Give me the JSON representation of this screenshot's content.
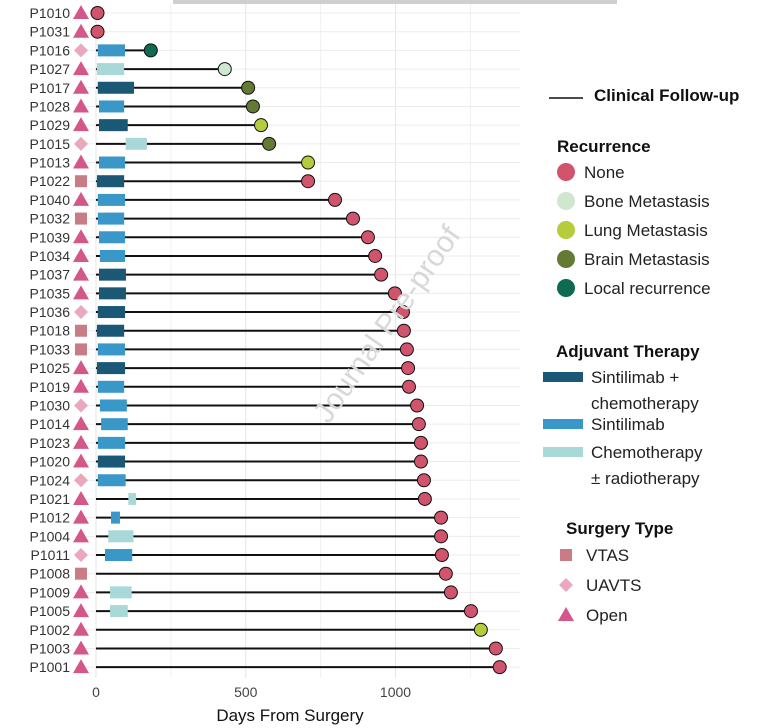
{
  "chart_data": {
    "type": "swimmer",
    "xlabel": "Days From Surgery",
    "ylabel": "",
    "xlim": [
      -60,
      1420
    ],
    "xticks": [
      0,
      500,
      1000
    ],
    "grid": true,
    "legend_position": "right",
    "watermark": "Journal Pre-proof",
    "legends": {
      "followup": {
        "label": "Clinical Follow-up"
      },
      "recurrence": {
        "title": "Recurrence",
        "items": [
          {
            "key": "none",
            "label": "None",
            "color": "#d0546c"
          },
          {
            "key": "bone",
            "label": "Bone Metastasis",
            "color": "#cfe6cf"
          },
          {
            "key": "lung",
            "label": "Lung Metastasis",
            "color": "#b5cc3c"
          },
          {
            "key": "brain",
            "label": "Brain Metastasis",
            "color": "#637a35"
          },
          {
            "key": "local",
            "label": "Local recurrence",
            "color": "#0e6b50"
          }
        ]
      },
      "therapy": {
        "title": "Adjuvant Therapy",
        "items": [
          {
            "key": "combo",
            "label_lines": [
              "Sintilimab +",
              "chemotherapy"
            ],
            "color": "#1b5876"
          },
          {
            "key": "sint",
            "label_lines": [
              "Sintilimab"
            ],
            "color": "#3a98c8"
          },
          {
            "key": "chemo",
            "label_lines": [
              "Chemotherapy",
              "± radiotherapy"
            ],
            "color": "#a9d8d8"
          }
        ]
      },
      "surgery": {
        "title": "Surgery Type",
        "items": [
          {
            "key": "VTAS",
            "label": "VTAS",
            "color": "#c97b86",
            "shape": "square"
          },
          {
            "key": "UAVTS",
            "label": "UAVTS",
            "color": "#eaa8bc",
            "shape": "diamond"
          },
          {
            "key": "Open",
            "label": "Open",
            "color": "#d4578a",
            "shape": "triangle"
          }
        ]
      }
    },
    "patients": [
      {
        "id": "P1010",
        "surgery": "Open",
        "followup": 5,
        "recurrence": "none",
        "therapy": null
      },
      {
        "id": "P1031",
        "surgery": "Open",
        "followup": 5,
        "recurrence": "none",
        "therapy": null
      },
      {
        "id": "P1016",
        "surgery": "UAVTS",
        "followup": 183,
        "recurrence": "local",
        "therapy": {
          "type": "sint",
          "start": 6,
          "end": 97
        }
      },
      {
        "id": "P1027",
        "surgery": "Open",
        "followup": 430,
        "recurrence": "bone",
        "therapy": {
          "type": "chemo",
          "start": 3,
          "end": 94
        }
      },
      {
        "id": "P1017",
        "surgery": "Open",
        "followup": 508,
        "recurrence": "brain",
        "therapy": {
          "type": "combo",
          "start": 6,
          "end": 127
        }
      },
      {
        "id": "P1028",
        "surgery": "Open",
        "followup": 524,
        "recurrence": "brain",
        "therapy": {
          "type": "sint",
          "start": 10,
          "end": 94
        }
      },
      {
        "id": "P1029",
        "surgery": "Open",
        "followup": 551,
        "recurrence": "lung",
        "therapy": {
          "type": "combo",
          "start": 10,
          "end": 106
        }
      },
      {
        "id": "P1015",
        "surgery": "UAVTS",
        "followup": 578,
        "recurrence": "brain",
        "therapy": {
          "type": "chemo",
          "start": 99,
          "end": 170
        }
      },
      {
        "id": "P1013",
        "surgery": "Open",
        "followup": 708,
        "recurrence": "lung",
        "therapy": {
          "type": "sint",
          "start": 10,
          "end": 97
        }
      },
      {
        "id": "P1022",
        "surgery": "VTAS",
        "followup": 708,
        "recurrence": "none",
        "therapy": {
          "type": "combo",
          "start": 3,
          "end": 94
        }
      },
      {
        "id": "P1040",
        "surgery": "Open",
        "followup": 798,
        "recurrence": "none",
        "therapy": {
          "type": "sint",
          "start": 6,
          "end": 97
        }
      },
      {
        "id": "P1032",
        "surgery": "VTAS",
        "followup": 858,
        "recurrence": "none",
        "therapy": {
          "type": "sint",
          "start": 6,
          "end": 94
        }
      },
      {
        "id": "P1039",
        "surgery": "Open",
        "followup": 908,
        "recurrence": "none",
        "therapy": {
          "type": "sint",
          "start": 10,
          "end": 97
        }
      },
      {
        "id": "P1034",
        "surgery": "Open",
        "followup": 932,
        "recurrence": "none",
        "therapy": {
          "type": "sint",
          "start": 13,
          "end": 97
        }
      },
      {
        "id": "P1037",
        "surgery": "Open",
        "followup": 952,
        "recurrence": "none",
        "therapy": {
          "type": "combo",
          "start": 10,
          "end": 100
        }
      },
      {
        "id": "P1035",
        "surgery": "Open",
        "followup": 998,
        "recurrence": "none",
        "therapy": {
          "type": "combo",
          "start": 10,
          "end": 100
        }
      },
      {
        "id": "P1036",
        "surgery": "UAVTS",
        "followup": 1025,
        "recurrence": "none",
        "therapy": {
          "type": "combo",
          "start": 6,
          "end": 97
        }
      },
      {
        "id": "P1018",
        "surgery": "VTAS",
        "followup": 1028,
        "recurrence": "none",
        "therapy": {
          "type": "combo",
          "start": 3,
          "end": 94
        }
      },
      {
        "id": "P1033",
        "surgery": "VTAS",
        "followup": 1038,
        "recurrence": "none",
        "therapy": {
          "type": "sint",
          "start": 6,
          "end": 97
        }
      },
      {
        "id": "P1025",
        "surgery": "Open",
        "followup": 1042,
        "recurrence": "none",
        "therapy": {
          "type": "combo",
          "start": 3,
          "end": 97
        }
      },
      {
        "id": "P1019",
        "surgery": "Open",
        "followup": 1045,
        "recurrence": "none",
        "therapy": {
          "type": "sint",
          "start": 6,
          "end": 94
        }
      },
      {
        "id": "P1030",
        "surgery": "UAVTS",
        "followup": 1072,
        "recurrence": "none",
        "therapy": {
          "type": "sint",
          "start": 13,
          "end": 103
        }
      },
      {
        "id": "P1014",
        "surgery": "Open",
        "followup": 1078,
        "recurrence": "none",
        "therapy": {
          "type": "sint",
          "start": 17,
          "end": 106
        }
      },
      {
        "id": "P1023",
        "surgery": "Open",
        "followup": 1085,
        "recurrence": "none",
        "therapy": {
          "type": "sint",
          "start": 6,
          "end": 97
        }
      },
      {
        "id": "P1020",
        "surgery": "Open",
        "followup": 1085,
        "recurrence": "none",
        "therapy": {
          "type": "combo",
          "start": 6,
          "end": 97
        }
      },
      {
        "id": "P1024",
        "surgery": "UAVTS",
        "followup": 1095,
        "recurrence": "none",
        "therapy": {
          "type": "sint",
          "start": 6,
          "end": 99
        }
      },
      {
        "id": "P1021",
        "surgery": "Open",
        "followup": 1098,
        "recurrence": "none",
        "therapy": {
          "type": "chemo",
          "start": 108,
          "end": 134
        }
      },
      {
        "id": "P1012",
        "surgery": "Open",
        "followup": 1152,
        "recurrence": "none",
        "therapy": {
          "type": "sint",
          "start": 50,
          "end": 80
        }
      },
      {
        "id": "P1004",
        "surgery": "Open",
        "followup": 1152,
        "recurrence": "none",
        "therapy": {
          "type": "chemo",
          "start": 41,
          "end": 125
        }
      },
      {
        "id": "P1011",
        "surgery": "UAVTS",
        "followup": 1155,
        "recurrence": "none",
        "therapy": {
          "type": "sint",
          "start": 30,
          "end": 121
        }
      },
      {
        "id": "P1008",
        "surgery": "VTAS",
        "followup": 1168,
        "recurrence": "none",
        "therapy": null
      },
      {
        "id": "P1009",
        "surgery": "Open",
        "followup": 1185,
        "recurrence": "none",
        "therapy": {
          "type": "chemo",
          "start": 47,
          "end": 119
        }
      },
      {
        "id": "P1005",
        "surgery": "Open",
        "followup": 1252,
        "recurrence": "none",
        "therapy": {
          "type": "chemo",
          "start": 47,
          "end": 106
        }
      },
      {
        "id": "P1002",
        "surgery": "Open",
        "followup": 1285,
        "recurrence": "lung",
        "therapy": null
      },
      {
        "id": "P1003",
        "surgery": "Open",
        "followup": 1335,
        "recurrence": "none",
        "therapy": null
      },
      {
        "id": "P1001",
        "surgery": "Open",
        "followup": 1348,
        "recurrence": "none",
        "therapy": null
      }
    ]
  }
}
